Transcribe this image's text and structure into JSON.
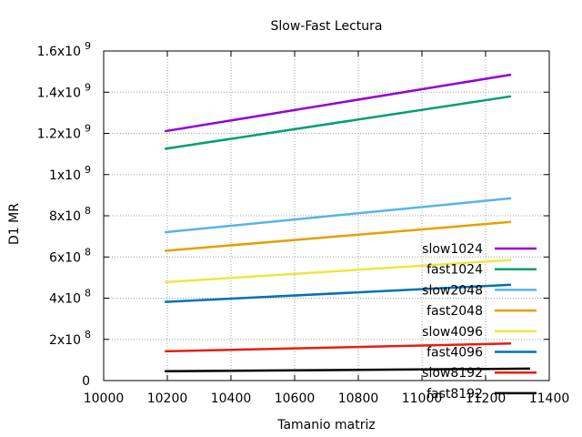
{
  "chart_data": {
    "type": "line",
    "title": "Slow-Fast Lectura",
    "xlabel": "Tamanio matriz",
    "ylabel": "D1 MR",
    "xlim": [
      10000,
      11400
    ],
    "ylim": [
      0,
      1600000000
    ],
    "grid": true,
    "legend_position": "bottom-right",
    "x_ticks": [
      {
        "value": 10000,
        "label": "10000"
      },
      {
        "value": 10200,
        "label": "10200"
      },
      {
        "value": 10400,
        "label": "10400"
      },
      {
        "value": 10600,
        "label": "10600"
      },
      {
        "value": 10800,
        "label": "10800"
      },
      {
        "value": 11000,
        "label": "11000"
      },
      {
        "value": 11200,
        "label": "11200"
      },
      {
        "value": 11400,
        "label": "11400"
      }
    ],
    "y_ticks": [
      {
        "value": 0,
        "mant": "0",
        "exp": ""
      },
      {
        "value": 200000000,
        "mant": "2x10",
        "exp": "8"
      },
      {
        "value": 400000000,
        "mant": "4x10",
        "exp": "8"
      },
      {
        "value": 600000000,
        "mant": "6x10",
        "exp": "8"
      },
      {
        "value": 800000000,
        "mant": "8x10",
        "exp": "8"
      },
      {
        "value": 1000000000,
        "mant": "1x10",
        "exp": "9"
      },
      {
        "value": 1200000000,
        "mant": "1.2x10",
        "exp": "9"
      },
      {
        "value": 1400000000,
        "mant": "1.4x10",
        "exp": "9"
      },
      {
        "value": 1600000000,
        "mant": "1.6x10",
        "exp": "9"
      }
    ],
    "series": [
      {
        "name": "slow1024",
        "color": "#9400d3",
        "x": [
          10192,
          11280
        ],
        "y": [
          1210000000,
          1485000000
        ]
      },
      {
        "name": "fast1024",
        "color": "#009e73",
        "x": [
          10192,
          11280
        ],
        "y": [
          1125000000,
          1380000000
        ]
      },
      {
        "name": "slow2048",
        "color": "#56b4e9",
        "x": [
          10192,
          11280
        ],
        "y": [
          720000000,
          885000000
        ]
      },
      {
        "name": "fast2048",
        "color": "#e69f00",
        "x": [
          10192,
          11280
        ],
        "y": [
          630000000,
          770000000
        ]
      },
      {
        "name": "slow4096",
        "color": "#f0e442",
        "x": [
          10192,
          11280
        ],
        "y": [
          478000000,
          585000000
        ]
      },
      {
        "name": "fast4096",
        "color": "#0072b2",
        "x": [
          10192,
          11280
        ],
        "y": [
          382000000,
          465000000
        ]
      },
      {
        "name": "slow8192",
        "color": "#e51e10",
        "x": [
          10192,
          11280
        ],
        "y": [
          142000000,
          180000000
        ]
      },
      {
        "name": "fast8192",
        "color": "#000000",
        "x": [
          10192,
          11340
        ],
        "y": [
          45000000,
          58000000
        ]
      }
    ]
  }
}
